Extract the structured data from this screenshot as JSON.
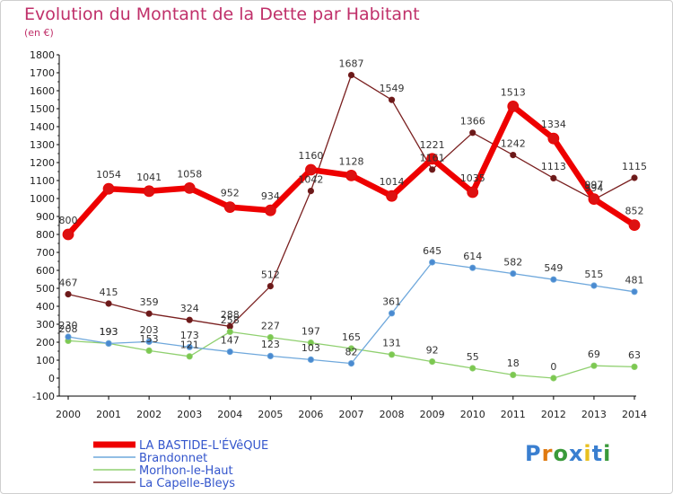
{
  "title": "Evolution du Montant de la Dette par Habitant",
  "subtitle": "(en €)",
  "logo": {
    "text": "Proxiti",
    "letter_colors": [
      "#3a7fd0",
      "#e07a10",
      "#3a9a3a",
      "#3a7fd0",
      "#e8c020",
      "#3a7fd0",
      "#3a9a3a"
    ]
  },
  "chart_data": {
    "type": "line",
    "x": [
      2000,
      2001,
      2002,
      2003,
      2004,
      2005,
      2006,
      2007,
      2008,
      2009,
      2010,
      2011,
      2012,
      2013,
      2014
    ],
    "ylim": [
      -100,
      1800
    ],
    "yticks": [
      -100,
      0,
      100,
      200,
      300,
      400,
      500,
      600,
      700,
      800,
      900,
      1000,
      1100,
      1200,
      1300,
      1400,
      1500,
      1600,
      1700,
      1800
    ],
    "grid": false,
    "legend_position": "bottom-left",
    "series": [
      {
        "name": "La Capelle-Bleys",
        "color": "#7a2020",
        "marker": "#6a1a1a",
        "width": 1.3,
        "radius": 3.2,
        "values": [
          467,
          415,
          359,
          324,
          288,
          512,
          1042,
          1687,
          1549,
          1161,
          1366,
          1242,
          1113,
          994,
          1115
        ]
      },
      {
        "name": "Morlhon-le-Haut",
        "color": "#90d070",
        "marker": "#7cc850",
        "width": 1.3,
        "radius": 3.2,
        "values": [
          208,
          193,
          153,
          121,
          258,
          227,
          197,
          165,
          131,
          92,
          55,
          18,
          0,
          69,
          63
        ]
      },
      {
        "name": "Brandonnet",
        "color": "#6fa8dc",
        "marker": "#4a8ad0",
        "width": 1.3,
        "radius": 3.2,
        "values": [
          230,
          193,
          203,
          173,
          147,
          123,
          103,
          82,
          361,
          645,
          614,
          582,
          549,
          515,
          481
        ]
      },
      {
        "name": "LA BASTIDE-L'ÉVêQUE",
        "color": "#ee0000",
        "marker": "#dd1111",
        "width": 6.5,
        "radius": 6,
        "values": [
          800,
          1054,
          1041,
          1058,
          952,
          934,
          1160,
          1128,
          1014,
          1221,
          1035,
          1513,
          1334,
          997,
          852
        ]
      }
    ],
    "legend_entries": [
      {
        "label": "LA BASTIDE-L'ÉVêQUE",
        "color": "#ee0000",
        "text_color": "#3355cc",
        "thick": true
      },
      {
        "label": "Brandonnet",
        "color": "#6fa8dc",
        "text_color": "#3355cc",
        "thick": false
      },
      {
        "label": "Morlhon-le-Haut",
        "color": "#90d070",
        "text_color": "#3355cc",
        "thick": false
      },
      {
        "label": "La Capelle-Bleys",
        "color": "#7a2020",
        "text_color": "#3355cc",
        "thick": false
      }
    ]
  }
}
